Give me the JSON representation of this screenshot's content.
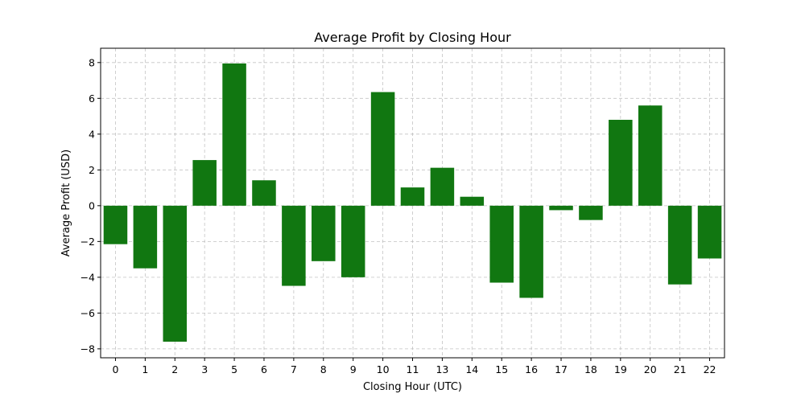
{
  "chart_data": {
    "type": "bar",
    "title": "Average Profit by Closing Hour",
    "xlabel": "Closing Hour (UTC)",
    "ylabel": "Average Profit (USD)",
    "categories": [
      "0",
      "1",
      "2",
      "3",
      "5",
      "6",
      "7",
      "8",
      "9",
      "10",
      "11",
      "13",
      "14",
      "15",
      "16",
      "17",
      "18",
      "19",
      "20",
      "21",
      "22"
    ],
    "values": [
      -2.15,
      -3.5,
      -7.6,
      2.55,
      7.95,
      1.42,
      -4.48,
      -3.1,
      -4.0,
      6.35,
      1.02,
      2.12,
      0.5,
      -4.3,
      -5.15,
      -0.25,
      -0.8,
      4.8,
      5.6,
      -4.4,
      -2.95
    ],
    "ylim": [
      -8.5,
      8.8
    ],
    "yticks": [
      -8,
      -6,
      -4,
      -2,
      0,
      2,
      4,
      6,
      8
    ],
    "ytick_labels": [
      "−8",
      "−6",
      "−4",
      "−2",
      "0",
      "2",
      "4",
      "6",
      "8"
    ],
    "grid": true,
    "bar_color": "#117711"
  }
}
